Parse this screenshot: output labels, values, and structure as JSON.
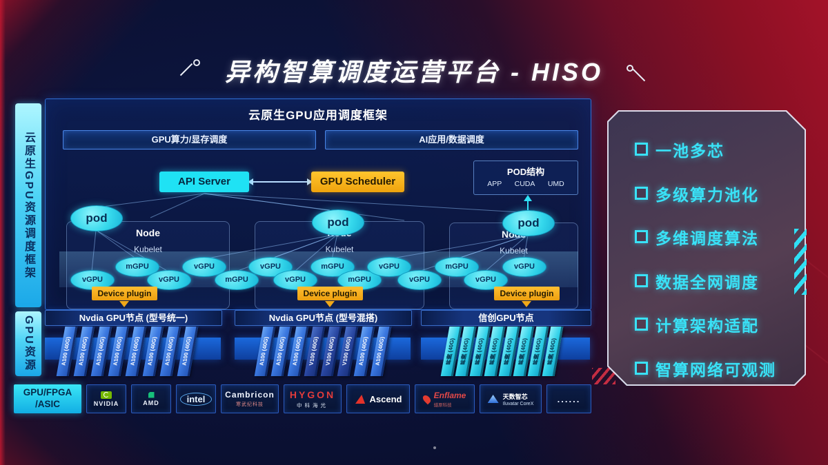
{
  "title": "异构智算调度运营平台 - HISO",
  "sidebar": {
    "framework_label": "云原生GPU资源调度框架",
    "resource_label": "GPU资源"
  },
  "framework": {
    "header": "云原生GPU应用调度框架",
    "bars": [
      "GPU算力/显存调度",
      "AI应用/数据调度"
    ],
    "api_server": "API Server",
    "gpu_scheduler": "GPU Scheduler",
    "pod_structure": {
      "title": "POD结构",
      "items": [
        "APP",
        "CUDA",
        "UMD"
      ]
    },
    "nodes": [
      {
        "pod": "pod",
        "name": "Node",
        "agent": "Kubelet"
      },
      {
        "pod": "pod",
        "name": "Node",
        "agent": "Kubelet"
      },
      {
        "pod": "pod",
        "name": "Node",
        "agent": "Kubelet"
      }
    ],
    "gpu_units": [
      "vGPU",
      "mGPU",
      "vGPU",
      "vGPU",
      "mGPU",
      "vGPU",
      "vGPU",
      "mGPU",
      "mGPU",
      "vGPU",
      "vGPU",
      "mGPU",
      "vGPU",
      "vGPU"
    ],
    "device_plugin": "Device plugin"
  },
  "gpu_rows": [
    {
      "label": "Nvdia GPU节点 (型号统一)",
      "tone": "blue",
      "cards": [
        "A100 (40G)",
        "A100 (40G)",
        "A100 (40G)",
        "A100 (40G)",
        "A100 (40G)",
        "A100 (40G)",
        "A100 (40G)",
        "A100 (40G)"
      ]
    },
    {
      "label": "Nvdia GPU节点 (型号混搭)",
      "tone": "blue",
      "cards": [
        "A100 (40G)",
        "A100 (40G)",
        "A100 (40G)",
        "V100 (40G)",
        "V100 (40G)",
        "V100 (40G)",
        "A100 (40G)",
        "A100 (40G)"
      ]
    },
    {
      "label": "信创GPU节点",
      "tone": "cyan",
      "cards": [
        "昇腾 (40G)",
        "昇腾 (40G)",
        "昇腾 (40G)",
        "昇腾 (40G)",
        "昇腾 (40G)",
        "昇腾 (40G)",
        "昇腾 (40G)",
        "昇腾 (40G)"
      ]
    }
  ],
  "hardware": {
    "label_lines": [
      "GPU/FPGA",
      "/ASIC"
    ],
    "vendors": [
      {
        "icon": "nvidia-logo",
        "name": "NVIDIA"
      },
      {
        "icon": "amd-logo",
        "name": "AMD"
      },
      {
        "icon": "intel-logo",
        "name": "intel"
      },
      {
        "icon": "cambricon-logo",
        "name": "Cambricon",
        "sub": "寒武纪科技"
      },
      {
        "icon": "hygon-logo",
        "name": "HYGON",
        "sub": "中科海光"
      },
      {
        "icon": "ascend-logo",
        "name": "Ascend"
      },
      {
        "icon": "enflame-logo",
        "name": "Enflame",
        "sub": "燧原科技"
      },
      {
        "icon": "iluvatar-logo",
        "name": "天数智芯",
        "sub": "Iluvatar CoreX"
      },
      {
        "icon": "more-dots",
        "name": "......"
      }
    ]
  },
  "features": [
    "一池多芯",
    "多级算力池化",
    "多维调度算法",
    "数据全网调度",
    "计算架构适配",
    "智算网络可观测"
  ],
  "colors": {
    "accent_cyan": "#2FE0F5",
    "accent_gold": "#F5AF19",
    "card_blue": "#3C7BE0",
    "card_cyan": "#35D8EA",
    "bg_navy": "#0A0F2E",
    "bg_red": "#8E1026"
  }
}
